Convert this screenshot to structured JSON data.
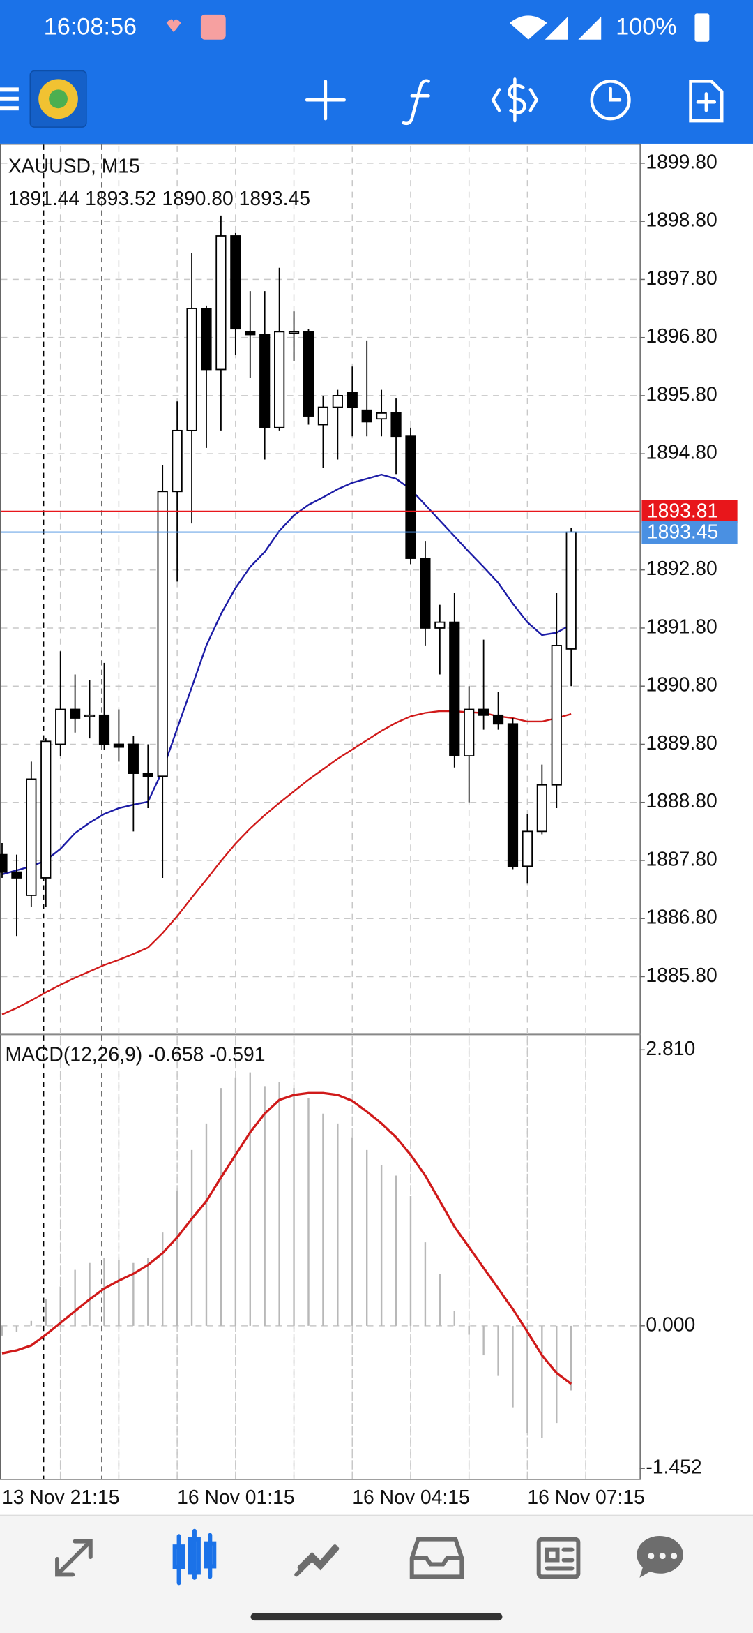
{
  "status_bar": {
    "time": "16:08:56",
    "battery": "100%"
  },
  "chart_data": [
    {
      "type": "candlestick",
      "title": "XAUUSD, M15",
      "subtitle": "1891.44 1893.52 1890.80 1893.45",
      "categories": [
        "13 Nov 21:15",
        null,
        null,
        null,
        null,
        null,
        null,
        null,
        null,
        null,
        null,
        null,
        "16 Nov 01:15",
        null,
        null,
        null,
        null,
        null,
        null,
        null,
        null,
        null,
        null,
        null,
        "16 Nov 04:15",
        null,
        null,
        null,
        null,
        null,
        null,
        null,
        null,
        null,
        null,
        null,
        "16 Nov 07:15",
        null,
        null,
        null
      ],
      "open": [
        1887.9,
        1887.6,
        1887.2,
        1887.5,
        1889.8,
        1890.4,
        1890.3,
        1890.3,
        1889.8,
        1889.8,
        1889.3,
        1889.25,
        1894.15,
        1895.2,
        1897.3,
        1896.25,
        1898.55,
        1896.9,
        1896.85,
        1895.25,
        1896.9,
        1896.9,
        1895.3,
        1895.6,
        1895.85,
        1895.55,
        1895.4,
        1895.5,
        1895.1,
        1893.0,
        1891.8,
        1891.9,
        1889.6,
        1890.4,
        1890.3,
        1890.15,
        1887.7,
        1888.3,
        1889.1,
        1891.44
      ],
      "high": [
        1888.1,
        1887.9,
        1889.5,
        1889.9,
        1891.4,
        1891.0,
        1890.9,
        1891.2,
        1890.4,
        1889.95,
        1889.8,
        1894.6,
        1895.7,
        1898.25,
        1897.35,
        1898.9,
        1898.6,
        1897.6,
        1897.6,
        1898.0,
        1897.25,
        1896.95,
        1895.8,
        1895.9,
        1896.3,
        1896.75,
        1895.9,
        1895.75,
        1895.25,
        1893.3,
        1892.2,
        1892.4,
        1890.8,
        1891.6,
        1890.7,
        1890.25,
        1888.6,
        1889.45,
        1892.4,
        1893.52
      ],
      "low": [
        1887.5,
        1886.5,
        1887.0,
        1887.0,
        1889.6,
        1890.0,
        1889.9,
        1889.7,
        1889.5,
        1888.3,
        1888.7,
        1887.5,
        1892.6,
        1893.6,
        1894.9,
        1895.2,
        1896.5,
        1896.1,
        1894.7,
        1895.2,
        1896.4,
        1895.3,
        1894.55,
        1894.7,
        1895.1,
        1895.1,
        1895.1,
        1894.45,
        1892.9,
        1891.5,
        1891.0,
        1889.4,
        1888.8,
        1890.05,
        1890.05,
        1887.65,
        1887.4,
        1888.25,
        1888.7,
        1890.8
      ],
      "close": [
        1887.6,
        1887.5,
        1889.2,
        1889.85,
        1890.4,
        1890.25,
        1890.3,
        1889.8,
        1889.75,
        1889.3,
        1889.25,
        1894.15,
        1895.2,
        1897.3,
        1896.25,
        1898.55,
        1896.95,
        1896.85,
        1895.25,
        1896.9,
        1896.9,
        1895.45,
        1895.6,
        1895.8,
        1895.6,
        1895.35,
        1895.5,
        1895.1,
        1893.0,
        1891.8,
        1891.9,
        1889.6,
        1890.4,
        1890.3,
        1890.15,
        1887.7,
        1888.3,
        1889.1,
        1891.5,
        1893.45
      ],
      "lines": [
        {
          "color": "#1c1ca6",
          "values": [
            1887.56,
            1887.63,
            1887.7,
            1887.8,
            1888.0,
            1888.27,
            1888.45,
            1888.6,
            1888.7,
            1888.76,
            1888.81,
            1889.35,
            1890.07,
            1890.78,
            1891.5,
            1892.04,
            1892.49,
            1892.85,
            1893.11,
            1893.47,
            1893.74,
            1893.92,
            1894.05,
            1894.19,
            1894.3,
            1894.37,
            1894.44,
            1894.37,
            1894.19,
            1893.92,
            1893.65,
            1893.38,
            1893.11,
            1892.85,
            1892.58,
            1892.22,
            1891.9,
            1891.68,
            1891.72,
            1891.86
          ]
        },
        {
          "color": "#d01a1a",
          "values": [
            1885.15,
            1885.26,
            1885.39,
            1885.53,
            1885.66,
            1885.78,
            1885.89,
            1886.0,
            1886.09,
            1886.19,
            1886.3,
            1886.55,
            1886.84,
            1887.16,
            1887.47,
            1887.79,
            1888.09,
            1888.35,
            1888.58,
            1888.79,
            1888.99,
            1889.19,
            1889.37,
            1889.55,
            1889.71,
            1889.87,
            1890.03,
            1890.17,
            1890.28,
            1890.34,
            1890.37,
            1890.37,
            1890.35,
            1890.34,
            1890.28,
            1890.25,
            1890.19,
            1890.19,
            1890.25,
            1890.32
          ]
        }
      ],
      "price_lines": [
        {
          "value": 1893.81,
          "color": "#e8161b"
        },
        {
          "value": 1893.45,
          "color": "#4a90e2"
        }
      ],
      "ylim": [
        1884.81,
        1900.1
      ],
      "yticks": [
        {
          "value": 1899.8,
          "label": "1899.80"
        },
        {
          "value": 1898.8,
          "label": "1898.80"
        },
        {
          "value": 1897.8,
          "label": "1897.80"
        },
        {
          "value": 1896.8,
          "label": "1896.80"
        },
        {
          "value": 1895.8,
          "label": "1895.80"
        },
        {
          "value": 1894.8,
          "label": "1894.80"
        },
        {
          "value": 1892.8,
          "label": "1892.80"
        },
        {
          "value": 1891.8,
          "label": "1891.80"
        },
        {
          "value": 1890.8,
          "label": "1890.80"
        },
        {
          "value": 1889.8,
          "label": "1889.80"
        },
        {
          "value": 1888.8,
          "label": "1888.80"
        },
        {
          "value": 1887.8,
          "label": "1887.80"
        },
        {
          "value": 1886.8,
          "label": "1886.80"
        },
        {
          "value": 1885.8,
          "label": "1885.80"
        }
      ],
      "grid": true
    },
    {
      "type": "macd",
      "title": "MACD(12,26,9) -0.658 -0.591",
      "histogram": {
        "color": "#b8b8b8",
        "values": [
          -0.1,
          -0.06,
          0.05,
          0.27,
          0.4,
          0.57,
          0.64,
          0.69,
          0.67,
          0.64,
          0.69,
          0.95,
          1.37,
          1.79,
          2.06,
          2.42,
          2.53,
          2.58,
          2.44,
          2.48,
          2.42,
          2.32,
          2.16,
          2.06,
          1.92,
          1.79,
          1.64,
          1.53,
          1.32,
          0.85,
          0.53,
          0.15,
          -0.09,
          -0.3,
          -0.51,
          -0.83,
          -1.09,
          -1.14,
          -0.99,
          -0.658
        ]
      },
      "signal": {
        "color": "#d01a1a",
        "values": [
          -0.28,
          -0.25,
          -0.2,
          -0.09,
          0.03,
          0.15,
          0.27,
          0.38,
          0.46,
          0.53,
          0.62,
          0.74,
          0.9,
          1.09,
          1.27,
          1.51,
          1.74,
          1.97,
          2.16,
          2.3,
          2.35,
          2.37,
          2.37,
          2.35,
          2.29,
          2.18,
          2.06,
          1.92,
          1.74,
          1.53,
          1.27,
          1.01,
          0.8,
          0.59,
          0.38,
          0.17,
          -0.06,
          -0.3,
          -0.48,
          -0.591
        ]
      },
      "ylim": [
        -1.452,
        2.81
      ],
      "yticks": [
        {
          "value": 2.81,
          "label": "2.810"
        },
        {
          "value": 0,
          "label": "0.000"
        },
        -1.452
      ],
      "grid": true
    }
  ]
}
